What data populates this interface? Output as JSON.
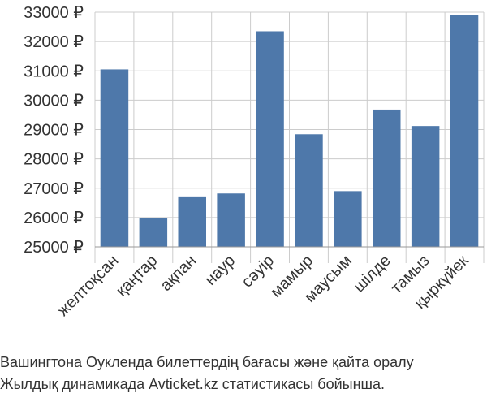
{
  "caption": {
    "line1": "Вашингтона Оукленда билеттердің бағасы және қайта оралу",
    "line2": "Жылдық динамикада Avticket.kz статистикасы бойынша."
  },
  "colors": {
    "bar": "#4e78aa",
    "grid": "#cccccc",
    "axis": "#999999",
    "text": "#333333",
    "background": "#ffffff"
  },
  "chart_data": {
    "type": "bar",
    "categories": [
      "желтоқсан",
      "қаңтар",
      "ақпан",
      "наур",
      "сәуір",
      "мамыр",
      "маусым",
      "шілде",
      "тамыз",
      "қыркүйек"
    ],
    "values": [
      31050,
      25980,
      26720,
      26820,
      32350,
      28840,
      26900,
      29680,
      29120,
      32900
    ],
    "ylim": [
      25000,
      33000
    ],
    "yticks": [
      25000,
      26000,
      27000,
      28000,
      29000,
      30000,
      31000,
      32000,
      33000
    ],
    "ytick_labels": [
      "25000 ₽",
      "26000 ₽",
      "27000 ₽",
      "28000 ₽",
      "29000 ₽",
      "30000 ₽",
      "31000 ₽",
      "32000 ₽",
      "33000 ₽"
    ],
    "grid": true,
    "legend": "none",
    "title": "",
    "xlabel": "",
    "ylabel": ""
  }
}
